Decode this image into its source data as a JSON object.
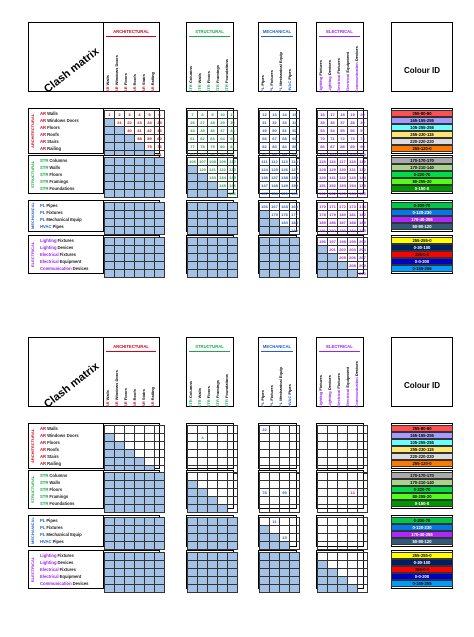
{
  "matrix": {
    "title": "Clash matrix",
    "colour_title": "Colour ID",
    "groups": [
      {
        "label": "ARCHITECTURAL",
        "color": "#d0021b"
      },
      {
        "label": "STRUCTURAL",
        "color": "#1aa64a"
      },
      {
        "label": "MECHANICAL",
        "color": "#1f5fcf"
      },
      {
        "label": "ELECTRICAL",
        "color": "#a020f0"
      }
    ],
    "columns": [
      {
        "p": "AR",
        "t": "Walls"
      },
      {
        "p": "AR",
        "t": "Windows Doors"
      },
      {
        "p": "AR",
        "t": "Floors"
      },
      {
        "p": "AR",
        "t": "Roofs"
      },
      {
        "p": "AR",
        "t": "Stairs"
      },
      {
        "p": "AR",
        "t": "Railing"
      },
      {
        "p": "STR",
        "t": "Columns"
      },
      {
        "p": "STR",
        "t": "Walls"
      },
      {
        "p": "STR",
        "t": "Floors"
      },
      {
        "p": "STR",
        "t": "Framings"
      },
      {
        "p": "STR",
        "t": "Foundations"
      },
      {
        "p": "PL",
        "t": "Pipes"
      },
      {
        "p": "PL",
        "t": "Fixtures"
      },
      {
        "p": "PL",
        "t": "Mechanical Equip"
      },
      {
        "p": "HVAC",
        "t": "Pipes"
      },
      {
        "p": "Lighting",
        "t": "Fixtures"
      },
      {
        "p": "Lighting",
        "t": "Devices"
      },
      {
        "p": "Electrical",
        "t": "Fixtures"
      },
      {
        "p": "Electrical",
        "t": "Equipment"
      },
      {
        "p": "Communication",
        "t": "Devices"
      }
    ],
    "sections": [
      {
        "label": "ARCHITECTURAL",
        "color": "#d0021b",
        "rows": [
          {
            "p": "AR",
            "t": "Walls"
          },
          {
            "p": "AR",
            "t": "Windows Doors"
          },
          {
            "p": "AR",
            "t": "Floors"
          },
          {
            "p": "AR",
            "t": "Roofs"
          },
          {
            "p": "AR",
            "t": "Stairs"
          },
          {
            "p": "AR",
            "t": "Railing"
          }
        ]
      },
      {
        "label": "STRUCTURAL",
        "color": "#1aa64a",
        "rows": [
          {
            "p": "STR",
            "t": "Columns"
          },
          {
            "p": "STR",
            "t": "Walls"
          },
          {
            "p": "STR",
            "t": "Floors"
          },
          {
            "p": "STR",
            "t": "Framings"
          },
          {
            "p": "STR",
            "t": "Foundations"
          }
        ]
      },
      {
        "label": "MECHANICAL",
        "color": "#1f5fcf",
        "rows": [
          {
            "p": "PL",
            "t": "Pipes"
          },
          {
            "p": "PL",
            "t": "Fixtures"
          },
          {
            "p": "PL",
            "t": "Mechanical Equip"
          },
          {
            "p": "HVAC",
            "t": "Pipes"
          }
        ]
      },
      {
        "label": "ELECTRICAL",
        "color": "#a020f0",
        "rows": [
          {
            "p": "Lighting",
            "t": "Fixtures"
          },
          {
            "p": "Lighting",
            "t": "Devices"
          },
          {
            "p": "Electrical",
            "t": "Fixtures"
          },
          {
            "p": "Electrical",
            "t": "Equipment"
          },
          {
            "p": "Communication",
            "t": "Devices"
          }
        ]
      }
    ],
    "colours": [
      {
        "label": "255-80-80",
        "bg": "#ff5050"
      },
      {
        "label": "165-155-255",
        "bg": "#a59bff"
      },
      {
        "label": "105-255-255",
        "bg": "#69ffff"
      },
      {
        "label": "255-230-115",
        "bg": "#ffe673"
      },
      {
        "label": "220-220-220",
        "bg": "#dcdcdc"
      },
      {
        "label": "255-120-0",
        "bg": "#ff7800"
      },
      {
        "label": "170-170-170",
        "bg": "#aaaaaa"
      },
      {
        "label": "170-210-140",
        "bg": "#aad28c"
      },
      {
        "label": "0-220-70",
        "bg": "#00dc46"
      },
      {
        "label": "80-255-20",
        "bg": "#50ff14"
      },
      {
        "label": "0-150-0",
        "bg": "#009600"
      },
      {
        "label": "0-200-70",
        "bg": "#00c846"
      },
      {
        "label": "0-120-230",
        "bg": "#0078e6"
      },
      {
        "label": "170-40-255",
        "bg": "#aa28ff"
      },
      {
        "label": "50-90-120",
        "bg": "#325a78"
      },
      {
        "label": "255-255-0",
        "bg": "#ffff00"
      },
      {
        "label": "0-30-100",
        "bg": "#001e64"
      },
      {
        "label": "255-0-0",
        "bg": "#ff0000"
      },
      {
        "label": "0-0-200",
        "bg": "#0000c8"
      },
      {
        "label": "0-155-255",
        "bg": "#009bff"
      }
    ],
    "top_values": [
      [
        "1",
        "2",
        "3",
        "4",
        "5",
        "6",
        "7",
        "8",
        "9",
        "10",
        "11",
        "12",
        "13",
        "14",
        "15",
        "16",
        "17",
        "18",
        "19",
        "20"
      ],
      [
        "",
        "21",
        "22",
        "23",
        "24",
        "25",
        "26",
        "27",
        "28",
        "29",
        "30",
        "31",
        "32",
        "33",
        "34",
        "35",
        "36",
        "37",
        "38",
        "39"
      ],
      [
        "",
        "",
        "40",
        "41",
        "42",
        "43",
        "44",
        "45",
        "46",
        "47",
        "48",
        "49",
        "50",
        "51",
        "52",
        "53",
        "54",
        "55",
        "56",
        "57"
      ],
      [
        "",
        "",
        "",
        "58",
        "59",
        "60",
        "61",
        "62",
        "63",
        "64",
        "65",
        "66",
        "67",
        "68",
        "69",
        "70",
        "71",
        "72",
        "73",
        "74"
      ],
      [
        "",
        "",
        "",
        "",
        "75",
        "76",
        "77",
        "78",
        "79",
        "80",
        "81",
        "82",
        "83",
        "84",
        "85",
        "86",
        "87",
        "88",
        "89",
        "90"
      ],
      [
        "",
        "",
        "",
        "",
        "",
        "91",
        "92",
        "93",
        "94",
        "95",
        "96",
        "97",
        "98",
        "99",
        "100",
        "101",
        "102",
        "103",
        "104",
        "105"
      ],
      [
        "",
        "",
        "",
        "",
        "",
        "",
        "106",
        "107",
        "108",
        "109",
        "110",
        "111",
        "112",
        "113",
        "114",
        "115",
        "116",
        "117",
        "118",
        "119"
      ],
      [
        "",
        "",
        "",
        "",
        "",
        "",
        "",
        "120",
        "121",
        "122",
        "123",
        "124",
        "125",
        "126",
        "127",
        "128",
        "129",
        "130",
        "131",
        "132"
      ],
      [
        "",
        "",
        "",
        "",
        "",
        "",
        "",
        "",
        "133",
        "134",
        "135",
        "136",
        "137",
        "138",
        "139",
        "140",
        "141",
        "142",
        "143",
        "144"
      ],
      [
        "",
        "",
        "",
        "",
        "",
        "",
        "",
        "",
        "",
        "145",
        "146",
        "147",
        "148",
        "149",
        "150",
        "151",
        "152",
        "153",
        "154",
        "155"
      ],
      [
        "",
        "",
        "",
        "",
        "",
        "",
        "",
        "",
        "",
        "",
        "156",
        "157",
        "158",
        "159",
        "160",
        "161",
        "162",
        "163",
        "164",
        "165"
      ],
      [
        "",
        "",
        "",
        "",
        "",
        "",
        "",
        "",
        "",
        "",
        "",
        "166",
        "167",
        "168",
        "169",
        "170",
        "171",
        "172",
        "173",
        "174"
      ],
      [
        "",
        "",
        "",
        "",
        "",
        "",
        "",
        "",
        "",
        "",
        "",
        "",
        "175",
        "176",
        "177",
        "178",
        "179",
        "180",
        "181",
        "182"
      ],
      [
        "",
        "",
        "",
        "",
        "",
        "",
        "",
        "",
        "",
        "",
        "",
        "",
        "",
        "183",
        "184",
        "185",
        "186",
        "187",
        "188",
        "189"
      ],
      [
        "",
        "",
        "",
        "",
        "",
        "",
        "",
        "",
        "",
        "",
        "",
        "",
        "",
        "",
        "190",
        "191",
        "192",
        "193",
        "194",
        "195"
      ],
      [
        "",
        "",
        "",
        "",
        "",
        "",
        "",
        "",
        "",
        "",
        "",
        "",
        "",
        "",
        "",
        "196",
        "197",
        "198",
        "199",
        "200"
      ],
      [
        "",
        "",
        "",
        "",
        "",
        "",
        "",
        "",
        "",
        "",
        "",
        "",
        "",
        "",
        "",
        "",
        "201",
        "202",
        "203",
        "204"
      ],
      [
        "",
        "",
        "",
        "",
        "",
        "",
        "",
        "",
        "",
        "",
        "",
        "",
        "",
        "",
        "",
        "",
        "",
        "205",
        "206",
        "207"
      ],
      [
        "",
        "",
        "",
        "",
        "",
        "",
        "",
        "",
        "",
        "",
        "",
        "",
        "",
        "",
        "",
        "",
        "",
        "",
        "208",
        "209"
      ],
      [
        "",
        "",
        "",
        "",
        "",
        "",
        "",
        "",
        "",
        "",
        "",
        "",
        "",
        "",
        "",
        "",
        "",
        "",
        "",
        "210"
      ]
    ],
    "bottom_values": {
      "r1c7": "4",
      "r0c11": "22",
      "r8c11": "78",
      "r8c13": "95",
      "r8c18": "13",
      "r13c13": "15",
      "r11c12": "11"
    }
  }
}
